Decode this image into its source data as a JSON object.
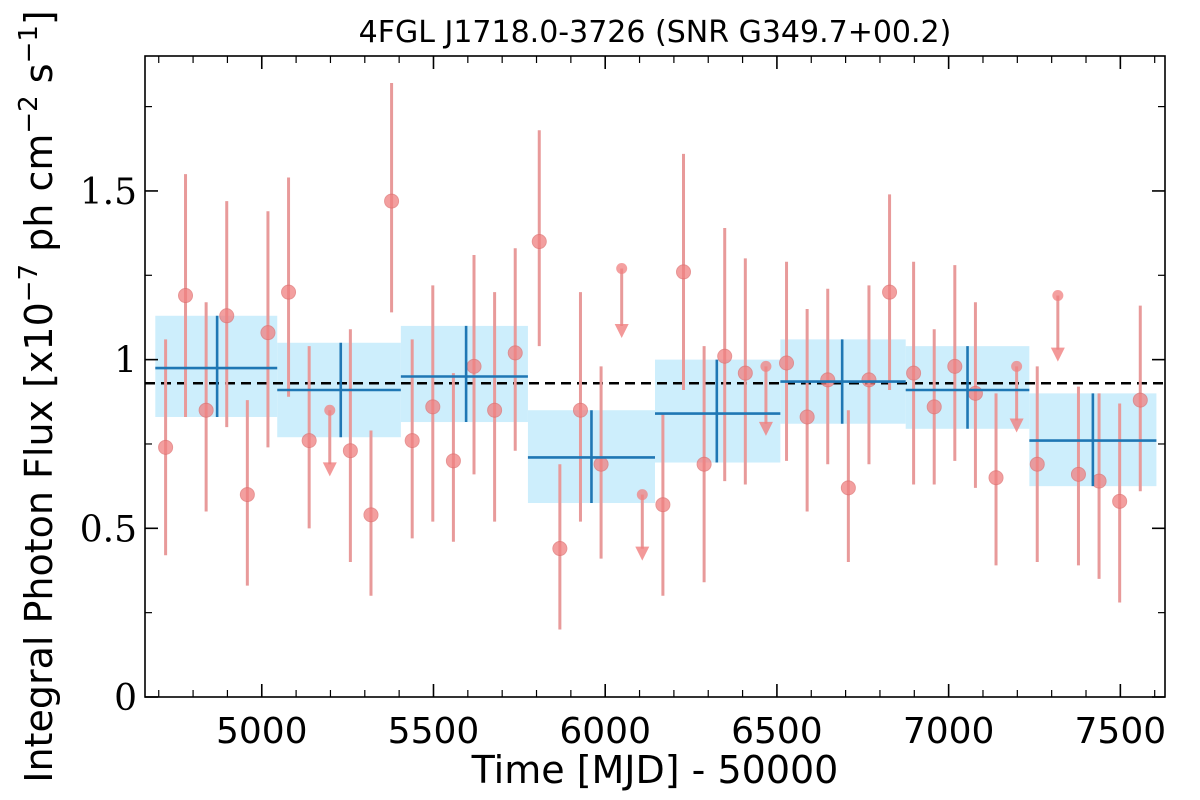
{
  "chart_data": {
    "type": "scatter",
    "title": "4FGL J1718.0-3726 (SNR G349.7+00.2)",
    "xlabel": "Time [MJD] - 50000",
    "ylabel": "Integral Photon Flux [x10",
    "ylabel_exp1": "−7",
    "ylabel_mid": " ph cm",
    "ylabel_exp2": "−2",
    "ylabel_s": " s",
    "ylabel_exp3": "−1",
    "ylabel_end": "]",
    "xlim": [
      4660,
      7630
    ],
    "ylim": [
      0,
      1.9
    ],
    "xticks": [
      5000,
      5500,
      6000,
      6500,
      7000,
      7500
    ],
    "xtick_labels": [
      "5000",
      "5500",
      "6000",
      "6500",
      "7000",
      "7500"
    ],
    "yticks": [
      0,
      0.5,
      1,
      1.5
    ],
    "ytick_labels": [
      "0",
      "0.5",
      "1",
      "1.5"
    ],
    "mean_flux": 0.93,
    "colors": {
      "points": "#f08080",
      "errorbars": "#e89a9a",
      "bins": "#1f77b4",
      "band": "#cdeefc",
      "mean_line": "#000000"
    },
    "binned": [
      {
        "x0": 4690,
        "x1": 5045,
        "xc": 4870,
        "y": 0.975,
        "ylo": 0.83,
        "yhi": 1.13
      },
      {
        "x0": 5045,
        "x1": 5405,
        "xc": 5230,
        "y": 0.91,
        "ylo": 0.77,
        "yhi": 1.05
      },
      {
        "x0": 5405,
        "x1": 5775,
        "xc": 5595,
        "y": 0.95,
        "ylo": 0.815,
        "yhi": 1.1
      },
      {
        "x0": 5775,
        "x1": 6145,
        "xc": 5960,
        "y": 0.71,
        "ylo": 0.575,
        "yhi": 0.85
      },
      {
        "x0": 6145,
        "x1": 6510,
        "xc": 6325,
        "y": 0.84,
        "ylo": 0.695,
        "yhi": 1.0
      },
      {
        "x0": 6510,
        "x1": 6875,
        "xc": 6690,
        "y": 0.935,
        "ylo": 0.81,
        "yhi": 1.06
      },
      {
        "x0": 6875,
        "x1": 7235,
        "xc": 7055,
        "y": 0.91,
        "ylo": 0.795,
        "yhi": 1.04
      },
      {
        "x0": 7235,
        "x1": 7605,
        "xc": 7420,
        "y": 0.76,
        "ylo": 0.625,
        "yhi": 0.9
      }
    ],
    "points": [
      {
        "x": 4720,
        "y": 0.74,
        "ylo": 0.42,
        "yhi": 1.06
      },
      {
        "x": 4778,
        "y": 1.19,
        "ylo": 0.83,
        "yhi": 1.55
      },
      {
        "x": 4838,
        "y": 0.85,
        "ylo": 0.55,
        "yhi": 1.17
      },
      {
        "x": 4898,
        "y": 1.13,
        "ylo": 0.8,
        "yhi": 1.47
      },
      {
        "x": 4958,
        "y": 0.6,
        "ylo": 0.33,
        "yhi": 0.88
      },
      {
        "x": 5018,
        "y": 1.08,
        "ylo": 0.74,
        "yhi": 1.44
      },
      {
        "x": 5078,
        "y": 1.2,
        "ylo": 0.89,
        "yhi": 1.54
      },
      {
        "x": 5138,
        "y": 0.76,
        "ylo": 0.5,
        "yhi": 1.04
      },
      {
        "x": 5198,
        "y": 0.85,
        "ul": true,
        "arrow_to": 0.66
      },
      {
        "x": 5258,
        "y": 0.73,
        "ylo": 0.4,
        "yhi": 1.09
      },
      {
        "x": 5318,
        "y": 0.54,
        "ylo": 0.3,
        "yhi": 0.79
      },
      {
        "x": 5378,
        "y": 1.47,
        "ylo": 1.14,
        "yhi": 1.82
      },
      {
        "x": 5438,
        "y": 0.76,
        "ylo": 0.47,
        "yhi": 1.06
      },
      {
        "x": 5498,
        "y": 0.86,
        "ylo": 0.52,
        "yhi": 1.22
      },
      {
        "x": 5558,
        "y": 0.7,
        "ylo": 0.46,
        "yhi": 0.96
      },
      {
        "x": 5618,
        "y": 0.98,
        "ylo": 0.66,
        "yhi": 1.31
      },
      {
        "x": 5678,
        "y": 0.85,
        "ylo": 0.52,
        "yhi": 1.2
      },
      {
        "x": 5738,
        "y": 1.02,
        "ylo": 0.73,
        "yhi": 1.33
      },
      {
        "x": 5808,
        "y": 1.35,
        "ylo": 1.04,
        "yhi": 1.68
      },
      {
        "x": 5868,
        "y": 0.44,
        "ylo": 0.2,
        "yhi": 0.69
      },
      {
        "x": 5928,
        "y": 0.85,
        "ylo": 0.52,
        "yhi": 1.2
      },
      {
        "x": 5988,
        "y": 0.69,
        "ylo": 0.41,
        "yhi": 0.98
      },
      {
        "x": 6048,
        "y": 1.27,
        "ul": true,
        "arrow_to": 1.07
      },
      {
        "x": 6108,
        "y": 0.6,
        "ul": true,
        "arrow_to": 0.41
      },
      {
        "x": 6168,
        "y": 0.57,
        "ylo": 0.3,
        "yhi": 0.84
      },
      {
        "x": 6228,
        "y": 1.26,
        "ylo": 0.91,
        "yhi": 1.61
      },
      {
        "x": 6288,
        "y": 0.69,
        "ylo": 0.34,
        "yhi": 1.04
      },
      {
        "x": 6348,
        "y": 1.01,
        "ylo": 0.64,
        "yhi": 1.39
      },
      {
        "x": 6408,
        "y": 0.96,
        "ylo": 0.63,
        "yhi": 1.3
      },
      {
        "x": 6468,
        "y": 0.98,
        "ul": true,
        "arrow_to": 0.78
      },
      {
        "x": 6528,
        "y": 0.99,
        "ylo": 0.7,
        "yhi": 1.29
      },
      {
        "x": 6588,
        "y": 0.83,
        "ylo": 0.55,
        "yhi": 1.15
      },
      {
        "x": 6648,
        "y": 0.94,
        "ylo": 0.69,
        "yhi": 1.21
      },
      {
        "x": 6708,
        "y": 0.62,
        "ylo": 0.4,
        "yhi": 0.85
      },
      {
        "x": 6768,
        "y": 0.94,
        "ylo": 0.69,
        "yhi": 1.22
      },
      {
        "x": 6828,
        "y": 1.2,
        "ylo": 0.91,
        "yhi": 1.49
      },
      {
        "x": 6898,
        "y": 0.96,
        "ylo": 0.63,
        "yhi": 1.29
      },
      {
        "x": 6958,
        "y": 0.86,
        "ylo": 0.63,
        "yhi": 1.09
      },
      {
        "x": 7018,
        "y": 0.98,
        "ylo": 0.7,
        "yhi": 1.28
      },
      {
        "x": 7078,
        "y": 0.9,
        "ylo": 0.62,
        "yhi": 1.17
      },
      {
        "x": 7138,
        "y": 0.65,
        "ylo": 0.39,
        "yhi": 0.9
      },
      {
        "x": 7198,
        "y": 0.98,
        "ul": true,
        "arrow_to": 0.79
      },
      {
        "x": 7258,
        "y": 0.69,
        "ylo": 0.4,
        "yhi": 0.98
      },
      {
        "x": 7318,
        "y": 1.19,
        "ul": true,
        "arrow_to": 1.0
      },
      {
        "x": 7378,
        "y": 0.66,
        "ylo": 0.39,
        "yhi": 0.92
      },
      {
        "x": 7438,
        "y": 0.64,
        "ylo": 0.35,
        "yhi": 0.9
      },
      {
        "x": 7498,
        "y": 0.58,
        "ylo": 0.28,
        "yhi": 0.87
      },
      {
        "x": 7558,
        "y": 0.88,
        "ylo": 0.61,
        "yhi": 1.16
      }
    ]
  }
}
